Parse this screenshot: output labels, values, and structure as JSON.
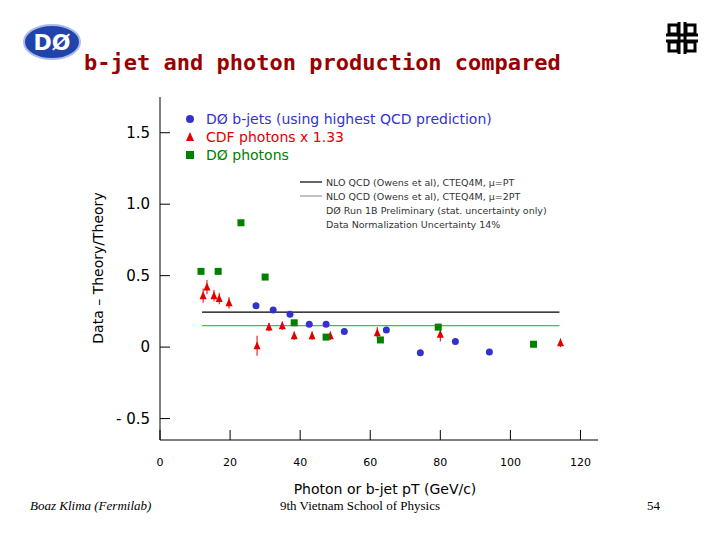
{
  "slide": {
    "title": "b-jet and photon production compared",
    "logo": "DØ",
    "footer": {
      "author": "Boaz Klima (Fermilab)",
      "event": "9th Vietnam School of Physics",
      "page": "54"
    }
  },
  "chart_data": {
    "type": "scatter",
    "xlabel": "Photon or b-jet pT (GeV/c)",
    "ylabel": "Data – Theory/Theory",
    "xlim": [
      0,
      125
    ],
    "ylim": [
      -0.65,
      1.75
    ],
    "xticks": [
      0,
      20,
      40,
      60,
      80,
      100,
      120
    ],
    "yticks": [
      {
        "value": -0.5,
        "label": "- 0.5"
      },
      0,
      0.5,
      {
        "value": 1,
        "label": "1.0"
      },
      1.5
    ],
    "legend": "top",
    "series": [
      {
        "name": "DØ b-jets (using highest QCD prediction)",
        "color": "#3333cc",
        "marker": "circle",
        "x": [
          27.4,
          32.3,
          37.1,
          42.6,
          47.4,
          52.6,
          64.6,
          74.3,
          84.3,
          94.0
        ],
        "values": [
          0.29,
          0.26,
          0.23,
          0.16,
          0.16,
          0.11,
          0.12,
          -0.04,
          0.04,
          -0.035
        ],
        "errors": [
          0.02,
          0.02,
          0.02,
          0.02,
          0.02,
          0.02,
          0.02,
          0.02,
          0.02,
          0.02
        ]
      },
      {
        "name": "CDF photons x 1.33",
        "color": "#e00000",
        "marker": "triangle",
        "x": [
          12.3,
          13.4,
          15.4,
          16.9,
          19.7,
          27.7,
          31.1,
          34.9,
          38.3,
          43.4,
          48.6,
          62.0,
          80.0,
          114.3
        ],
        "values": [
          0.36,
          0.42,
          0.36,
          0.34,
          0.31,
          0.01,
          0.14,
          0.15,
          0.08,
          0.08,
          0.08,
          0.1,
          0.09,
          0.03
        ],
        "errors": [
          0.05,
          0.05,
          0.04,
          0.04,
          0.04,
          0.07,
          0.03,
          0.03,
          0.03,
          0.03,
          0.03,
          0.04,
          0.05,
          0.03
        ]
      },
      {
        "name": "DØ photons",
        "color": "#008000",
        "marker": "square",
        "x": [
          11.7,
          16.6,
          23.1,
          30.0,
          38.3,
          47.4,
          62.9,
          79.4,
          106.6
        ],
        "values": [
          0.53,
          0.53,
          0.87,
          0.49,
          0.17,
          0.07,
          0.05,
          0.14,
          0.02
        ],
        "errors": [
          0.01,
          0.01,
          0.01,
          0.01,
          0.01,
          0.01,
          0.01,
          0.01,
          0.01
        ]
      }
    ],
    "reference_lines": [
      {
        "y": 0.245,
        "x": [
          12,
          114
        ],
        "color": "#000000"
      },
      {
        "y": 0.15,
        "x": [
          12,
          114
        ],
        "color": "#33cc33"
      }
    ],
    "annotations": [
      {
        "text": "NLO QCD (Owens et al), CTEQ4M, μ=PT",
        "color": "#000000"
      },
      {
        "text": "NLO QCD (Owens et al), CTEQ4M, μ=2PT",
        "color": "#999999"
      },
      {
        "text": "DØ Run 1B Preliminary (stat. uncertainty only)"
      },
      {
        "text": "Data Normalization Uncertainty 14%"
      }
    ]
  }
}
